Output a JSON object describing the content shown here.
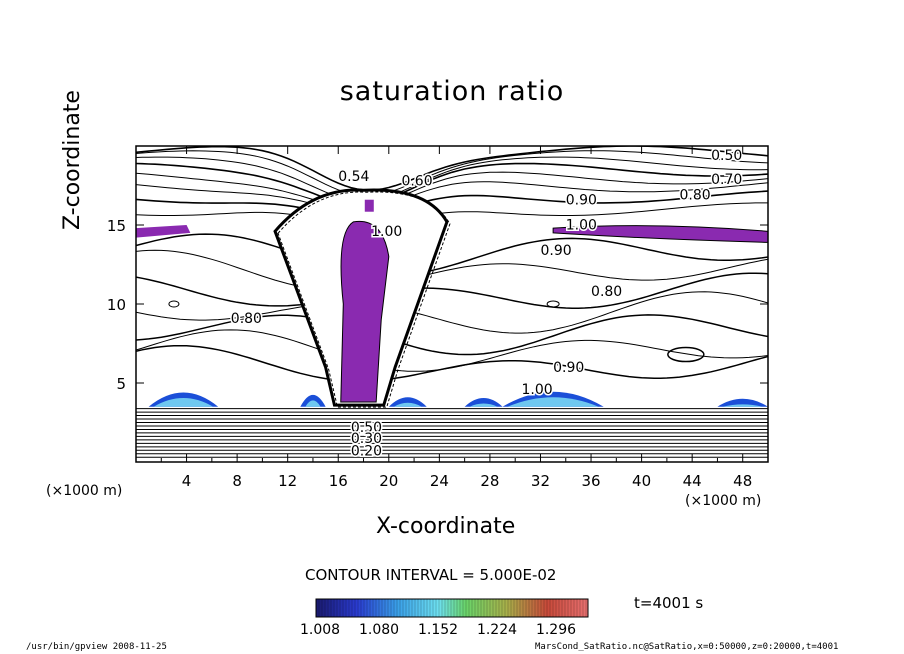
{
  "chart_data": {
    "type": "contour",
    "title": "saturation ratio",
    "xlabel": "X-coordinate",
    "ylabel": "Z-coordinate",
    "x_unit": "(×1000 m)",
    "x_unit_left": "(×1000 m)",
    "xlim": [
      0,
      50
    ],
    "ylim": [
      0,
      20
    ],
    "x_ticks": [
      4,
      8,
      12,
      16,
      20,
      24,
      28,
      32,
      36,
      40,
      44,
      48
    ],
    "y_ticks": [
      5,
      10,
      15
    ],
    "contour_labels": [
      {
        "text": "0.50",
        "x": 45.5,
        "y": 19.1
      },
      {
        "text": "0.70",
        "x": 45.5,
        "y": 17.6
      },
      {
        "text": "0.80",
        "x": 43.0,
        "y": 16.6
      },
      {
        "text": "0.90",
        "x": 34.0,
        "y": 16.3
      },
      {
        "text": "1.00",
        "x": 34.0,
        "y": 14.7
      },
      {
        "text": "0.90",
        "x": 32.0,
        "y": 13.1
      },
      {
        "text": "0.80",
        "x": 36.0,
        "y": 10.5
      },
      {
        "text": "0.80",
        "x": 7.5,
        "y": 8.8
      },
      {
        "text": "0.90",
        "x": 33.0,
        "y": 5.7
      },
      {
        "text": "1.00",
        "x": 30.5,
        "y": 4.3
      },
      {
        "text": "0.54",
        "x": 16.0,
        "y": 17.8
      },
      {
        "text": "0.60",
        "x": 21.0,
        "y": 17.5
      },
      {
        "text": "1.00",
        "x": 18.6,
        "y": 14.3
      },
      {
        "text": "0.50",
        "x": 17.0,
        "y": 1.9
      },
      {
        "text": "0.30",
        "x": 17.0,
        "y": 1.2
      },
      {
        "text": "0.20",
        "x": 17.0,
        "y": 0.4
      }
    ],
    "legend": {
      "type": "colorbar",
      "ticks": [
        "1.008",
        "1.080",
        "1.152",
        "1.224",
        "1.296"
      ],
      "range": [
        1.008,
        1.34
      ]
    },
    "grid": false
  },
  "annotations": {
    "contour_interval": "CONTOUR INTERVAL = 5.000E-02",
    "time": "t=4001 s",
    "footer_left": "/usr/bin/gpview   2008-11-25",
    "footer_right": "MarsCond_SatRatio.nc@SatRatio,x=0:50000,z=0:20000,t=4001"
  },
  "colors": {
    "supersat_fill": "#8a2ab0",
    "low_blue": "#1b4fd8",
    "line": "#000000"
  }
}
